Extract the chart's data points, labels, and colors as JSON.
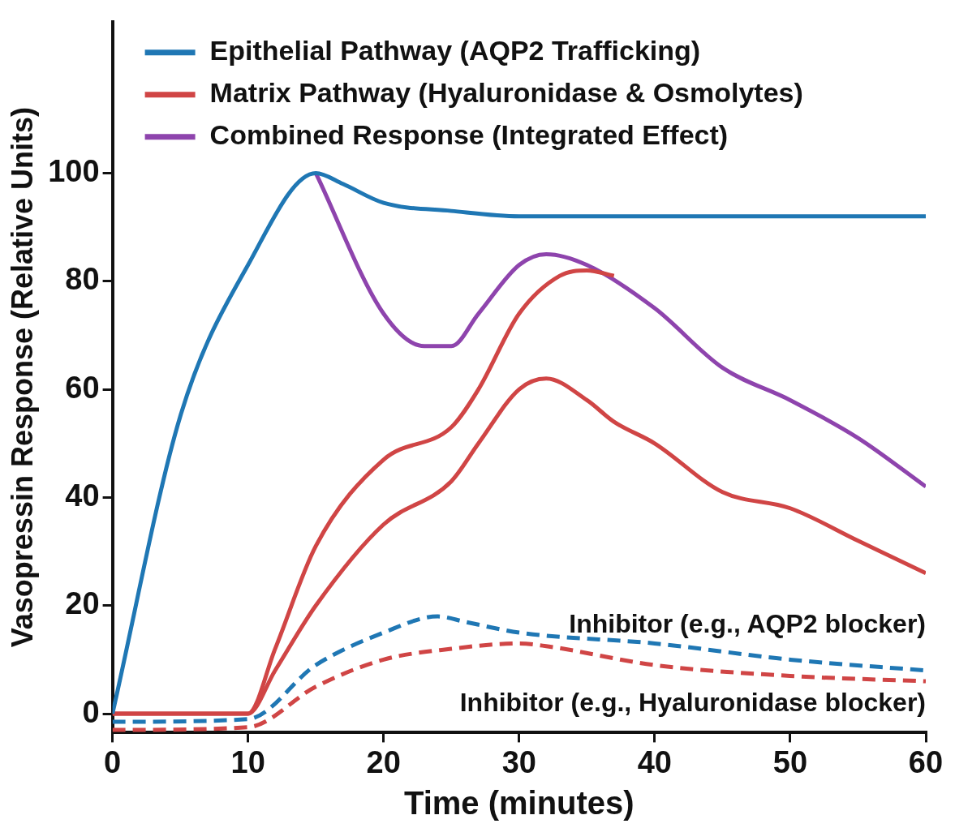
{
  "chart_data": {
    "type": "line",
    "xlabel": "Time (minutes)",
    "ylabel": "Vasopressin Response (Relative Units)",
    "xlim": [
      0,
      60
    ],
    "xticks": [
      0,
      10,
      20,
      30,
      40,
      50,
      60
    ],
    "ylim": [
      -3.5,
      128
    ],
    "yticks": [
      0,
      20,
      40,
      60,
      80,
      100
    ],
    "grid": false,
    "legend": "top left",
    "marker": "none",
    "series": [
      {
        "name": "Epithelial Pathway (AQP2 Trafficking)",
        "color": "#1f77b4",
        "x": [
          0,
          5,
          10,
          15,
          17,
          20,
          25,
          30,
          60
        ],
        "values": [
          0,
          55,
          83,
          100,
          98,
          94.5,
          93,
          92,
          92
        ]
      },
      {
        "name": "Matrix Pathway (Hyaluronidase & Osmolytes)",
        "color": "#d04545",
        "x": [
          0,
          10,
          12,
          15,
          20,
          25,
          27,
          30,
          33,
          35,
          37
        ],
        "values": [
          0,
          0,
          12,
          31,
          47,
          53,
          60,
          74,
          81,
          82,
          81
        ]
      },
      {
        "name": "Combined Response (Integrated Effect)",
        "color": "#8e44ad",
        "x": [
          15,
          20,
          23,
          25,
          27,
          30,
          32,
          35,
          40,
          45,
          50,
          55,
          60
        ],
        "values": [
          100,
          74,
          68,
          68,
          74,
          83,
          85,
          83,
          75,
          64,
          58,
          51,
          42
        ]
      },
      {
        "color": "#d04545",
        "x": [
          0,
          10,
          12,
          15,
          20,
          25,
          27,
          30,
          32,
          35,
          37,
          40,
          45,
          50,
          55,
          60
        ],
        "values": [
          0,
          0,
          8,
          20,
          35,
          43,
          50,
          60,
          62,
          58,
          54,
          50,
          41,
          38,
          32,
          26
        ]
      },
      {
        "name": "Inhibitor (e.g., AQP2 blocker)",
        "color": "#1f77b4",
        "line_style": "dashed",
        "x": [
          0,
          10,
          15,
          20,
          24,
          26,
          30,
          40,
          50,
          60
        ],
        "values": [
          -1.5,
          -1,
          9,
          15,
          18,
          17,
          15,
          13,
          10,
          8
        ]
      },
      {
        "name": "Inhibitor (e.g., Hyaluronidase blocker)",
        "color": "#d04545",
        "line_style": "dashed",
        "x": [
          0,
          10,
          15,
          20,
          25,
          30,
          32,
          40,
          50,
          60
        ],
        "values": [
          -3,
          -2.5,
          5,
          10,
          12,
          13,
          12.5,
          9,
          7,
          6
        ]
      }
    ]
  }
}
